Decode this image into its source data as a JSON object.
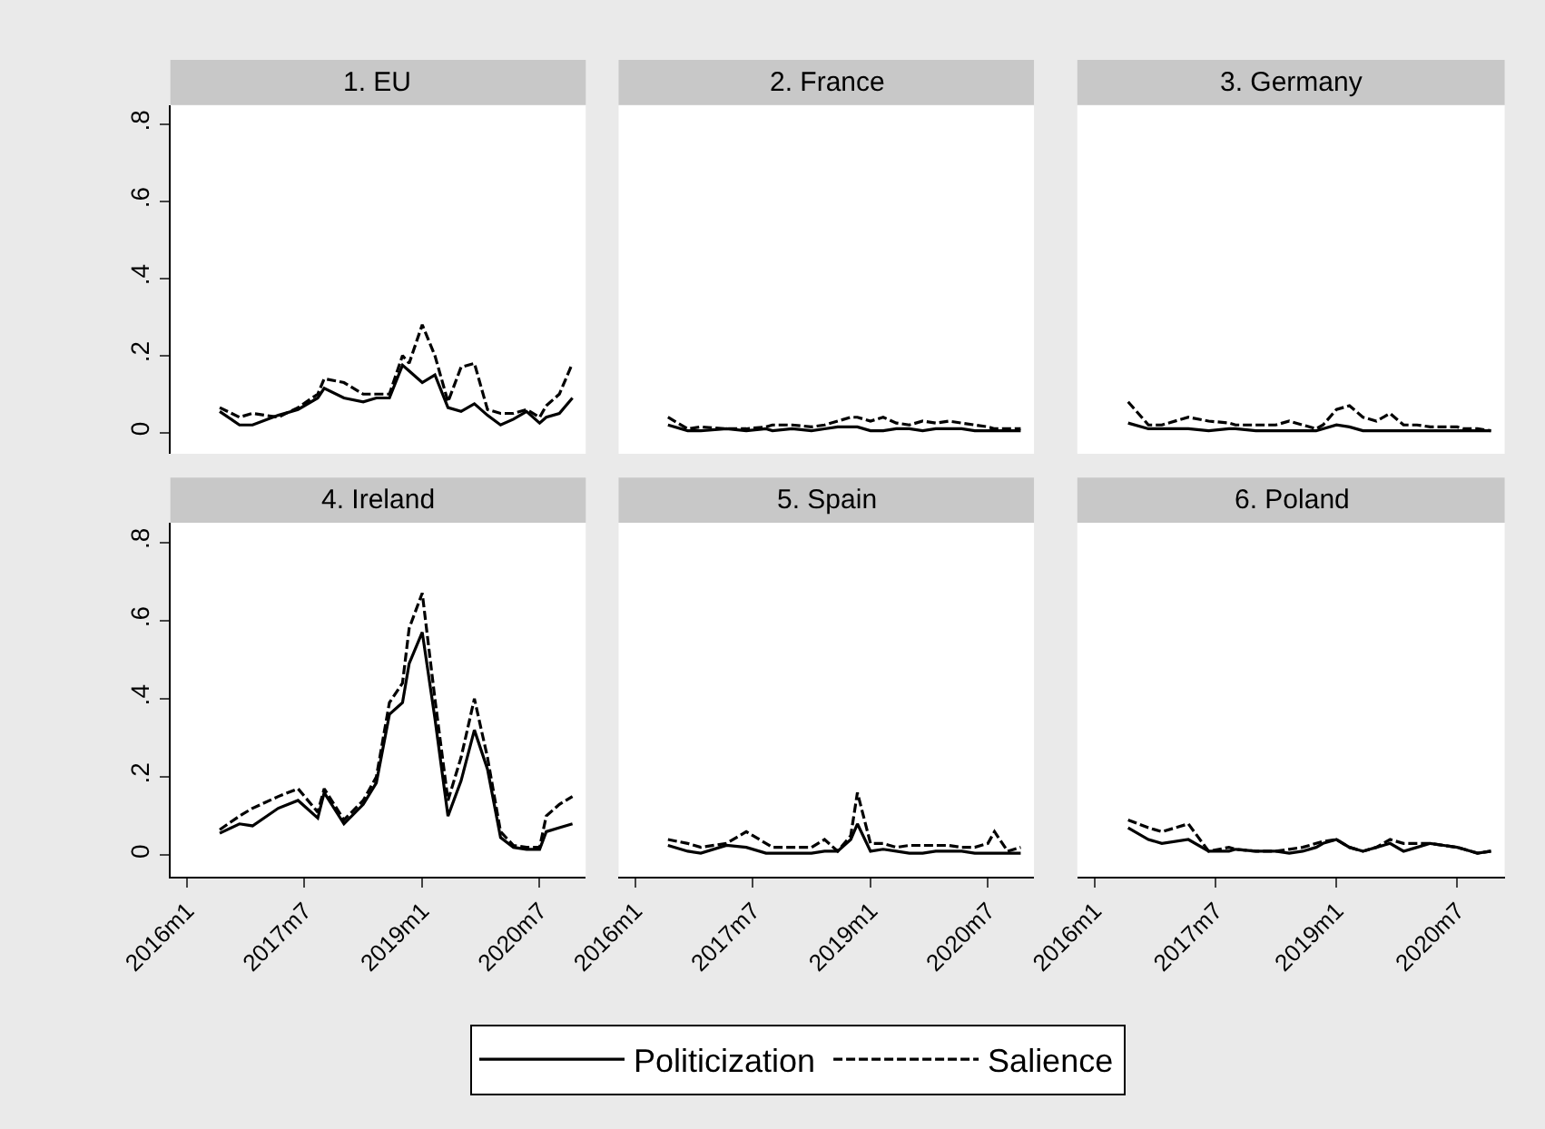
{
  "chart_data": [
    {
      "type": "line",
      "title": "1. EU",
      "x": [
        "2016-06",
        "2016-09",
        "2016-11",
        "2017-03",
        "2017-06",
        "2017-09",
        "2017-10",
        "2018-01",
        "2018-04",
        "2018-06",
        "2018-08",
        "2018-10",
        "2018-11",
        "2019-01",
        "2019-03",
        "2019-05",
        "2019-07",
        "2019-09",
        "2019-11",
        "2020-01",
        "2020-03",
        "2020-05",
        "2020-07",
        "2020-08",
        "2020-10",
        "2020-12"
      ],
      "series": [
        {
          "name": "Politicization",
          "color": "#000000",
          "line_style": "solid",
          "values": [
            0.055,
            0.02,
            0.02,
            0.045,
            0.06,
            0.09,
            0.115,
            0.09,
            0.08,
            0.09,
            0.09,
            0.175,
            0.16,
            0.13,
            0.15,
            0.065,
            0.055,
            0.075,
            0.045,
            0.02,
            0.035,
            0.055,
            0.025,
            0.04,
            0.05,
            0.09
          ]
        },
        {
          "name": "Salience",
          "color": "#000000",
          "line_style": "dashed",
          "values": [
            0.065,
            0.04,
            0.05,
            0.04,
            0.065,
            0.1,
            0.14,
            0.13,
            0.1,
            0.1,
            0.1,
            0.2,
            0.18,
            0.28,
            0.2,
            0.08,
            0.17,
            0.18,
            0.06,
            0.05,
            0.05,
            0.06,
            0.04,
            0.07,
            0.1,
            0.18
          ]
        }
      ],
      "xlim": [
        "2015-10-15",
        "2021-02-01"
      ],
      "ylim": [
        -0.055,
        0.85
      ],
      "yticks": [
        0,
        {
          "value": 0.2,
          "label": ".2"
        },
        {
          "value": 0.4,
          "label": ".4"
        },
        {
          "value": 0.6,
          "label": ".6"
        },
        {
          "value": 0.8,
          "label": ".8"
        }
      ],
      "tick_labels": "y",
      "grid": false,
      "legend": "bottom"
    },
    {
      "type": "line",
      "title": "2. France",
      "x": [
        "2016-06",
        "2016-09",
        "2016-11",
        "2017-03",
        "2017-06",
        "2017-09",
        "2017-10",
        "2018-01",
        "2018-04",
        "2018-06",
        "2018-08",
        "2018-10",
        "2018-11",
        "2019-01",
        "2019-03",
        "2019-05",
        "2019-07",
        "2019-09",
        "2019-11",
        "2020-01",
        "2020-03",
        "2020-05",
        "2020-07",
        "2020-08",
        "2020-10",
        "2020-12"
      ],
      "series": [
        {
          "color": "#000000",
          "line_style": "solid",
          "values": [
            0.02,
            0.005,
            0.005,
            0.01,
            0.005,
            0.01,
            0.005,
            0.01,
            0.005,
            0.01,
            0.015,
            0.015,
            0.015,
            0.005,
            0.005,
            0.01,
            0.01,
            0.005,
            0.01,
            0.01,
            0.01,
            0.005,
            0.005,
            0.005,
            0.005,
            0.005
          ]
        },
        {
          "color": "#000000",
          "line_style": "dashed",
          "values": [
            0.04,
            0.01,
            0.015,
            0.01,
            0.01,
            0.015,
            0.02,
            0.02,
            0.015,
            0.02,
            0.03,
            0.04,
            0.04,
            0.03,
            0.04,
            0.025,
            0.02,
            0.03,
            0.025,
            0.03,
            0.025,
            0.02,
            0.015,
            0.01,
            0.01,
            0.01
          ]
        }
      ],
      "xlim": [
        "2015-10-15",
        "2021-02-01"
      ],
      "ylim": [
        -0.055,
        0.85
      ],
      "tick_labels": false,
      "grid": false
    },
    {
      "type": "line",
      "title": "3. Germany",
      "x": [
        "2016-06",
        "2016-09",
        "2016-11",
        "2017-03",
        "2017-06",
        "2017-09",
        "2017-10",
        "2018-01",
        "2018-04",
        "2018-06",
        "2018-08",
        "2018-10",
        "2018-11",
        "2019-01",
        "2019-03",
        "2019-05",
        "2019-07",
        "2019-09",
        "2019-11",
        "2020-01",
        "2020-03",
        "2020-05",
        "2020-07",
        "2020-08",
        "2020-10",
        "2020-12"
      ],
      "series": [
        {
          "color": "#000000",
          "line_style": "solid",
          "values": [
            0.025,
            0.01,
            0.01,
            0.01,
            0.005,
            0.01,
            0.01,
            0.005,
            0.005,
            0.005,
            0.005,
            0.005,
            0.01,
            0.02,
            0.015,
            0.005,
            0.005,
            0.005,
            0.005,
            0.005,
            0.005,
            0.005,
            0.005,
            0.005,
            0.005,
            0.005
          ]
        },
        {
          "color": "#000000",
          "line_style": "dashed",
          "values": [
            0.08,
            0.02,
            0.02,
            0.04,
            0.03,
            0.025,
            0.02,
            0.02,
            0.02,
            0.03,
            0.02,
            0.01,
            0.02,
            0.06,
            0.07,
            0.04,
            0.03,
            0.05,
            0.02,
            0.02,
            0.015,
            0.015,
            0.015,
            0.01,
            0.01,
            0.005
          ]
        }
      ],
      "xlim": [
        "2015-10-15",
        "2021-02-01"
      ],
      "ylim": [
        -0.055,
        0.85
      ],
      "tick_labels": false,
      "grid": false
    },
    {
      "type": "line",
      "title": "4. Ireland",
      "x": [
        "2016-06",
        "2016-09",
        "2016-11",
        "2017-03",
        "2017-06",
        "2017-09",
        "2017-10",
        "2018-01",
        "2018-04",
        "2018-06",
        "2018-08",
        "2018-10",
        "2018-11",
        "2019-01",
        "2019-03",
        "2019-05",
        "2019-07",
        "2019-09",
        "2019-11",
        "2020-01",
        "2020-03",
        "2020-05",
        "2020-07",
        "2020-08",
        "2020-10",
        "2020-12"
      ],
      "series": [
        {
          "color": "#000000",
          "line_style": "solid",
          "values": [
            0.056,
            0.08,
            0.075,
            0.12,
            0.14,
            0.095,
            0.16,
            0.08,
            0.13,
            0.185,
            0.36,
            0.39,
            0.49,
            0.57,
            0.35,
            0.1,
            0.19,
            0.32,
            0.22,
            0.045,
            0.02,
            0.015,
            0.015,
            0.06,
            0.07,
            0.08
          ]
        },
        {
          "color": "#000000",
          "line_style": "dashed",
          "values": [
            0.065,
            0.1,
            0.12,
            0.15,
            0.17,
            0.11,
            0.17,
            0.09,
            0.14,
            0.2,
            0.39,
            0.44,
            0.58,
            0.67,
            0.4,
            0.14,
            0.25,
            0.4,
            0.25,
            0.06,
            0.025,
            0.02,
            0.02,
            0.1,
            0.13,
            0.15
          ]
        }
      ],
      "xlim": [
        "2015-10-15",
        "2021-02-01"
      ],
      "ylim": [
        -0.055,
        0.85
      ],
      "xticks": [
        {
          "value": "2016-01",
          "label": "2016m1"
        },
        {
          "value": "2017-07",
          "label": "2017m7"
        },
        {
          "value": "2019-01",
          "label": "2019m1"
        },
        {
          "value": "2020-07",
          "label": "2020m7"
        }
      ],
      "yticks": [
        0,
        {
          "value": 0.2,
          "label": ".2"
        },
        {
          "value": 0.4,
          "label": ".4"
        },
        {
          "value": 0.6,
          "label": ".6"
        },
        {
          "value": 0.8,
          "label": ".8"
        }
      ],
      "grid": false
    },
    {
      "type": "line",
      "title": "5. Spain",
      "x": [
        "2016-06",
        "2016-09",
        "2016-11",
        "2017-03",
        "2017-06",
        "2017-09",
        "2017-10",
        "2018-01",
        "2018-04",
        "2018-06",
        "2018-08",
        "2018-10",
        "2018-11",
        "2019-01",
        "2019-03",
        "2019-05",
        "2019-07",
        "2019-09",
        "2019-11",
        "2020-01",
        "2020-03",
        "2020-05",
        "2020-07",
        "2020-08",
        "2020-10",
        "2020-12"
      ],
      "series": [
        {
          "color": "#000000",
          "line_style": "solid",
          "values": [
            0.025,
            0.01,
            0.005,
            0.025,
            0.02,
            0.005,
            0.005,
            0.005,
            0.005,
            0.01,
            0.01,
            0.04,
            0.08,
            0.01,
            0.015,
            0.01,
            0.005,
            0.005,
            0.01,
            0.01,
            0.01,
            0.005,
            0.005,
            0.005,
            0.005,
            0.005
          ]
        },
        {
          "color": "#000000",
          "line_style": "dashed",
          "values": [
            0.04,
            0.03,
            0.02,
            0.03,
            0.06,
            0.03,
            0.02,
            0.02,
            0.02,
            0.04,
            0.01,
            0.05,
            0.16,
            0.03,
            0.03,
            0.02,
            0.025,
            0.025,
            0.025,
            0.025,
            0.02,
            0.02,
            0.03,
            0.06,
            0.01,
            0.02
          ]
        }
      ],
      "xlim": [
        "2015-10-15",
        "2021-02-01"
      ],
      "ylim": [
        -0.055,
        0.85
      ],
      "xticks": [
        {
          "value": "2016-01",
          "label": "2016m1"
        },
        {
          "value": "2017-07",
          "label": "2017m7"
        },
        {
          "value": "2019-01",
          "label": "2019m1"
        },
        {
          "value": "2020-07",
          "label": "2020m7"
        }
      ],
      "tick_labels": "x",
      "grid": false
    },
    {
      "type": "line",
      "title": "6. Poland",
      "x": [
        "2016-06",
        "2016-09",
        "2016-11",
        "2017-03",
        "2017-06",
        "2017-09",
        "2017-10",
        "2018-01",
        "2018-04",
        "2018-06",
        "2018-08",
        "2018-10",
        "2018-11",
        "2019-01",
        "2019-03",
        "2019-05",
        "2019-07",
        "2019-09",
        "2019-11",
        "2020-01",
        "2020-03",
        "2020-05",
        "2020-07",
        "2020-08",
        "2020-10",
        "2020-12"
      ],
      "series": [
        {
          "color": "#000000",
          "line_style": "solid",
          "values": [
            0.07,
            0.04,
            0.03,
            0.04,
            0.01,
            0.01,
            0.015,
            0.01,
            0.01,
            0.005,
            0.01,
            0.02,
            0.03,
            0.04,
            0.02,
            0.01,
            0.02,
            0.03,
            0.01,
            0.02,
            0.03,
            0.025,
            0.02,
            0.015,
            0.005,
            0.01
          ]
        },
        {
          "color": "#000000",
          "line_style": "dashed",
          "values": [
            0.09,
            0.07,
            0.06,
            0.08,
            0.01,
            0.02,
            0.015,
            0.01,
            0.01,
            0.015,
            0.02,
            0.03,
            0.035,
            0.04,
            0.02,
            0.01,
            0.02,
            0.04,
            0.03,
            0.03,
            0.03,
            0.025,
            0.02,
            0.015,
            0.005,
            0.01
          ]
        }
      ],
      "xlim": [
        "2015-10-15",
        "2021-02-01"
      ],
      "ylim": [
        -0.055,
        0.85
      ],
      "xticks": [
        {
          "value": "2016-01",
          "label": "2016m1"
        },
        {
          "value": "2017-07",
          "label": "2017m7"
        },
        {
          "value": "2019-01",
          "label": "2019m1"
        },
        {
          "value": "2020-07",
          "label": "2020m7"
        }
      ],
      "tick_labels": "x",
      "grid": false
    }
  ]
}
